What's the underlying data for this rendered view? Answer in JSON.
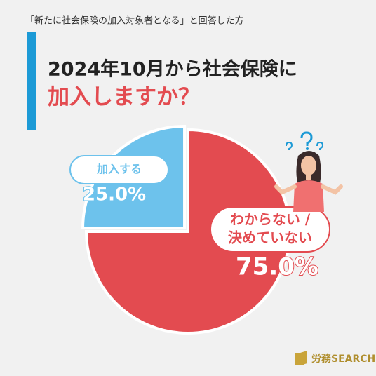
{
  "subtitle": "「新たに社会保険の加入対象者となる」と回答した方",
  "chart_data": {
    "type": "pie",
    "title": [
      "2024年10月から社会保険に",
      "加入しますか？"
    ],
    "categories": [
      [
        "わからない /",
        "決めていない"
      ],
      [
        "加入する"
      ]
    ],
    "values": [
      75,
      25
    ],
    "value_labels": [
      "75.0%",
      "25.0%"
    ],
    "colors": [
      "#e34b50",
      "#6dc2ec"
    ]
  },
  "logo": "労務SEARCH"
}
